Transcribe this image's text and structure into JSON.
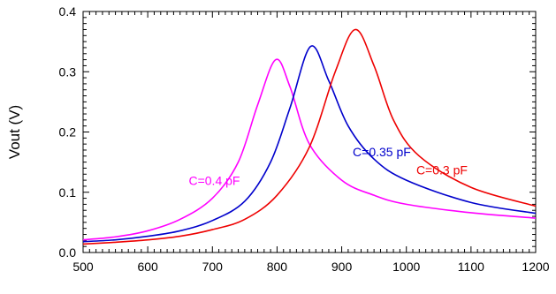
{
  "chart_data": {
    "type": "line",
    "title": "",
    "xlabel": "",
    "ylabel": "Vout (V)",
    "xlim": [
      500,
      1200
    ],
    "ylim": [
      0.0,
      0.4
    ],
    "x_ticks": [
      "500",
      "600",
      "700",
      "800",
      "900",
      "1000",
      "1100",
      "1200"
    ],
    "y_ticks": [
      "0.0",
      "0.1",
      "0.2",
      "0.3",
      "0.4"
    ],
    "grid": false,
    "series": [
      {
        "name": "C=0.4 pF",
        "color": "#ff00ff",
        "peak_x": 798,
        "peak_y": 0.32,
        "points": [
          [
            500,
            0.021
          ],
          [
            550,
            0.026
          ],
          [
            600,
            0.036
          ],
          [
            650,
            0.055
          ],
          [
            700,
            0.09
          ],
          [
            740,
            0.15
          ],
          [
            770,
            0.245
          ],
          [
            798,
            0.32
          ],
          [
            820,
            0.275
          ],
          [
            850,
            0.18
          ],
          [
            900,
            0.12
          ],
          [
            950,
            0.095
          ],
          [
            1000,
            0.08
          ],
          [
            1100,
            0.066
          ],
          [
            1200,
            0.057
          ]
        ]
      },
      {
        "name": "C=0.35 pF",
        "color": "#0000cc",
        "peak_x": 852,
        "peak_y": 0.342,
        "points": [
          [
            500,
            0.018
          ],
          [
            550,
            0.021
          ],
          [
            600,
            0.027
          ],
          [
            650,
            0.036
          ],
          [
            700,
            0.053
          ],
          [
            750,
            0.085
          ],
          [
            790,
            0.15
          ],
          [
            820,
            0.24
          ],
          [
            852,
            0.342
          ],
          [
            880,
            0.285
          ],
          [
            910,
            0.21
          ],
          [
            950,
            0.155
          ],
          [
            1000,
            0.12
          ],
          [
            1100,
            0.083
          ],
          [
            1200,
            0.065
          ]
        ]
      },
      {
        "name": "C=0.3 pF",
        "color": "#ee0000",
        "peak_x": 921,
        "peak_y": 0.37,
        "points": [
          [
            500,
            0.014
          ],
          [
            550,
            0.017
          ],
          [
            600,
            0.021
          ],
          [
            650,
            0.027
          ],
          [
            700,
            0.038
          ],
          [
            750,
            0.055
          ],
          [
            800,
            0.095
          ],
          [
            850,
            0.175
          ],
          [
            890,
            0.3
          ],
          [
            921,
            0.37
          ],
          [
            950,
            0.31
          ],
          [
            980,
            0.22
          ],
          [
            1020,
            0.16
          ],
          [
            1100,
            0.108
          ],
          [
            1200,
            0.077
          ]
        ]
      }
    ],
    "annotations": [
      {
        "text": "C=0.4 pF",
        "color": "#ff00ff",
        "x": 703,
        "y": 0.112
      },
      {
        "text": "C=0.35 pF",
        "color": "#0000cc",
        "x": 962,
        "y": 0.16
      },
      {
        "text": "C=0.3 pF",
        "color": "#ee0000",
        "x": 1055,
        "y": 0.13
      }
    ]
  }
}
